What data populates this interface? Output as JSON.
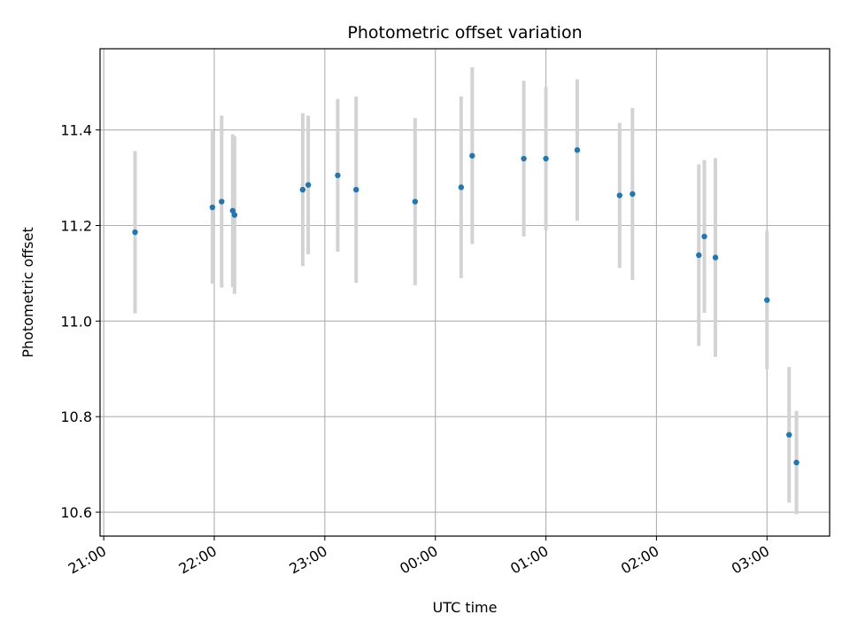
{
  "chart_data": {
    "type": "scatter",
    "title": "Photometric offset variation",
    "xlabel": "UTC time",
    "ylabel": "Photometric offset",
    "x_axis": "time",
    "xlim": [
      "2000-01-01T20:58",
      "2000-01-02T03:34"
    ],
    "ylim": [
      10.55,
      11.57
    ],
    "grid": true,
    "xticks": [
      {
        "time": "2000-01-01T21:00",
        "label": "21:00"
      },
      {
        "time": "2000-01-01T22:00",
        "label": "22:00"
      },
      {
        "time": "2000-01-01T23:00",
        "label": "23:00"
      },
      {
        "time": "2000-01-02T00:00",
        "label": "00:00"
      },
      {
        "time": "2000-01-02T01:00",
        "label": "01:00"
      },
      {
        "time": "2000-01-02T02:00",
        "label": "02:00"
      },
      {
        "time": "2000-01-02T03:00",
        "label": "03:00"
      }
    ],
    "yticks": [
      10.6,
      10.8,
      11.0,
      11.2,
      11.4
    ],
    "ytick_labels": [
      "10.6",
      "10.8",
      "11.0",
      "11.2",
      "11.4"
    ],
    "series": [
      {
        "marker_color": "#1f77b4",
        "errorbar_color": "#d3d3d3",
        "points": [
          {
            "time": "2000-01-01T21:17",
            "y": 11.186,
            "err": 0.17
          },
          {
            "time": "2000-01-01T21:59",
            "y": 11.238,
            "err": 0.16
          },
          {
            "time": "2000-01-01T22:04",
            "y": 11.25,
            "err": 0.18
          },
          {
            "time": "2000-01-01T22:10",
            "y": 11.231,
            "err": 0.16
          },
          {
            "time": "2000-01-01T22:11",
            "y": 11.222,
            "err": 0.165
          },
          {
            "time": "2000-01-01T22:48",
            "y": 11.275,
            "err": 0.16
          },
          {
            "time": "2000-01-01T22:51",
            "y": 11.285,
            "err": 0.145
          },
          {
            "time": "2000-01-01T23:07",
            "y": 11.305,
            "err": 0.16
          },
          {
            "time": "2000-01-01T23:17",
            "y": 11.275,
            "err": 0.195
          },
          {
            "time": "2000-01-01T23:49",
            "y": 11.25,
            "err": 0.175
          },
          {
            "time": "2000-01-02T00:14",
            "y": 11.28,
            "err": 0.19
          },
          {
            "time": "2000-01-02T00:20",
            "y": 11.346,
            "err": 0.185
          },
          {
            "time": "2000-01-02T00:48",
            "y": 11.34,
            "err": 0.163
          },
          {
            "time": "2000-01-02T01:00",
            "y": 11.34,
            "err": 0.15
          },
          {
            "time": "2000-01-02T01:17",
            "y": 11.358,
            "err": 0.148
          },
          {
            "time": "2000-01-02T01:40",
            "y": 11.263,
            "err": 0.152
          },
          {
            "time": "2000-01-02T01:47",
            "y": 11.266,
            "err": 0.18
          },
          {
            "time": "2000-01-02T02:23",
            "y": 11.138,
            "err": 0.19
          },
          {
            "time": "2000-01-02T02:26",
            "y": 11.177,
            "err": 0.16
          },
          {
            "time": "2000-01-02T02:32",
            "y": 11.133,
            "err": 0.208
          },
          {
            "time": "2000-01-02T03:00",
            "y": 11.044,
            "err": 0.145
          },
          {
            "time": "2000-01-02T03:12",
            "y": 10.762,
            "err": 0.142
          },
          {
            "time": "2000-01-02T03:16",
            "y": 10.704,
            "err": 0.108
          }
        ]
      }
    ]
  }
}
